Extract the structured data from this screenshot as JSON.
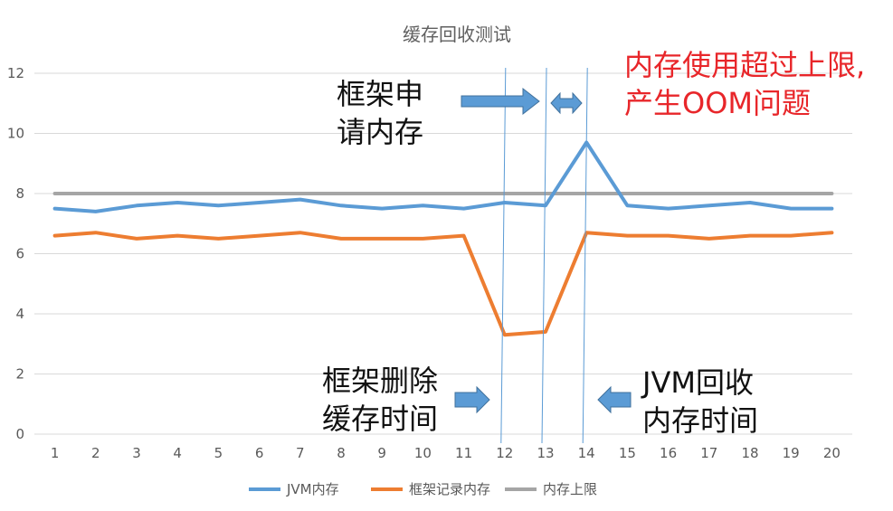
{
  "chart_data": {
    "type": "line",
    "title": "缓存回收测试",
    "xlabel": "",
    "ylabel": "",
    "categories": [
      "1",
      "2",
      "3",
      "4",
      "5",
      "6",
      "7",
      "8",
      "9",
      "10",
      "11",
      "12",
      "13",
      "14",
      "15",
      "16",
      "17",
      "18",
      "19",
      "20"
    ],
    "ylim": [
      0,
      12
    ],
    "yticks": [
      0,
      2,
      4,
      6,
      8,
      10,
      12
    ],
    "grid": true,
    "legend_position": "bottom",
    "series": [
      {
        "name": "JVM内存",
        "color": "#5b9bd5",
        "values": [
          7.5,
          7.4,
          7.6,
          7.7,
          7.6,
          7.7,
          7.8,
          7.6,
          7.5,
          7.6,
          7.5,
          7.7,
          7.6,
          9.7,
          7.6,
          7.5,
          7.6,
          7.7,
          7.5,
          7.5
        ]
      },
      {
        "name": "框架记录内存",
        "color": "#ed7d31",
        "values": [
          6.6,
          6.7,
          6.5,
          6.6,
          6.5,
          6.6,
          6.7,
          6.5,
          6.5,
          6.5,
          6.6,
          3.3,
          3.4,
          6.7,
          6.6,
          6.6,
          6.5,
          6.6,
          6.6,
          6.7
        ]
      },
      {
        "name": "内存上限",
        "color": "#a5a5a5",
        "values": [
          8,
          8,
          8,
          8,
          8,
          8,
          8,
          8,
          8,
          8,
          8,
          8,
          8,
          8,
          8,
          8,
          8,
          8,
          8,
          8
        ]
      }
    ],
    "guide_lines_at": [
      "12",
      "13",
      "14"
    ],
    "annotations": {
      "apply": [
        "框架申",
        "请内存"
      ],
      "oom": [
        "内存使用超过上限,",
        "产生OOM问题"
      ],
      "delete": [
        "框架删除",
        "缓存时间"
      ],
      "reclaim": [
        "JVM回收",
        "内存时间"
      ]
    },
    "colors": {
      "annotation_red": "#e8262a",
      "arrow": "#5b9bd5"
    }
  }
}
